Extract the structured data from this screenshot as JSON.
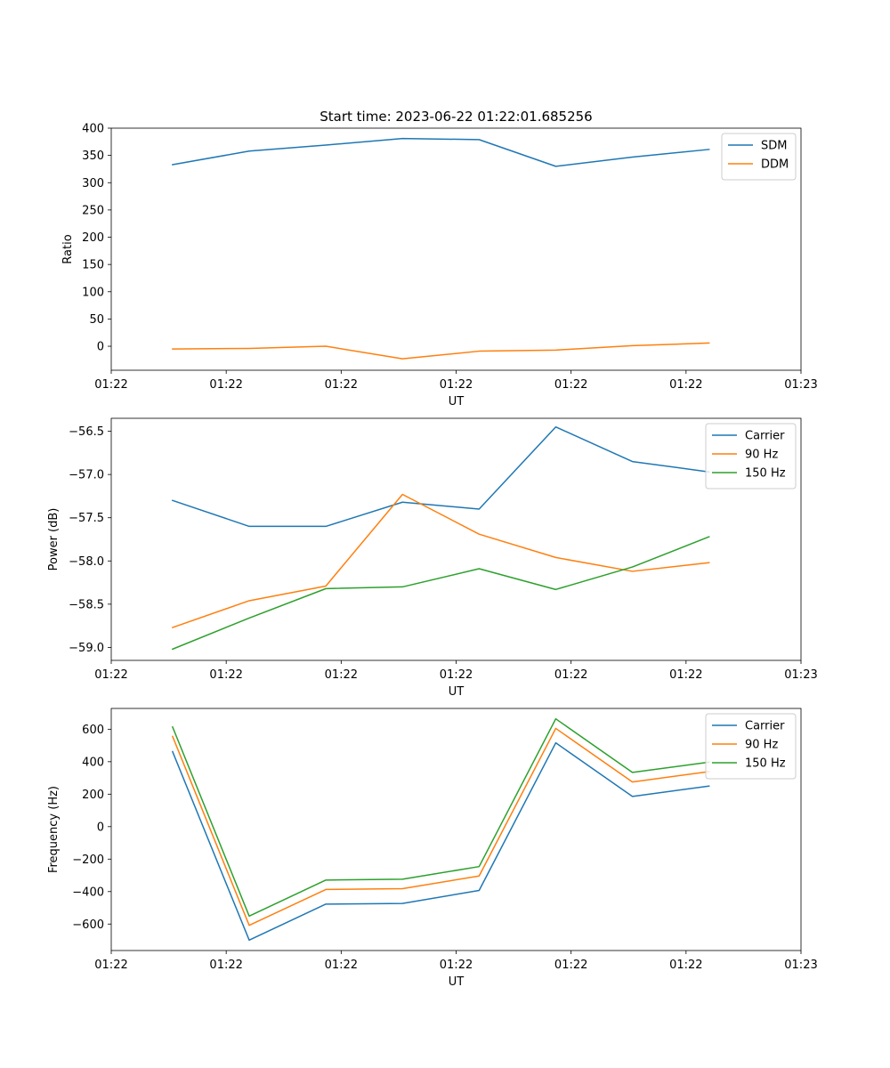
{
  "figure": {
    "title": "Start time: 2023-06-22 01:22:01.685256"
  },
  "colors": {
    "blue": "#1f77b4",
    "orange": "#ff7f0e",
    "green": "#2ca02c"
  },
  "chart_data": [
    {
      "type": "line",
      "title": "Start time: 2023-06-22 01:22:01.685256",
      "xlabel": "UT",
      "ylabel": "Ratio",
      "x": [
        1,
        2,
        3,
        4,
        5,
        6,
        7,
        8
      ],
      "xlim": [
        0.2,
        9.2
      ],
      "xticks": [
        0.2,
        1.7,
        3.2,
        4.7,
        6.2,
        7.7,
        9.2
      ],
      "xticklabels": [
        "01:22",
        "01:22",
        "01:22",
        "01:22",
        "01:22",
        "01:22",
        "01:23"
      ],
      "ylim": [
        -44,
        400
      ],
      "yticks": [
        0,
        50,
        100,
        150,
        200,
        250,
        300,
        350,
        400
      ],
      "yticklabels": [
        "0",
        "50",
        "100",
        "150",
        "200",
        "250",
        "300",
        "350",
        "400"
      ],
      "legend_position": "top-right",
      "series": [
        {
          "name": "SDM",
          "color": "#1f77b4",
          "values": [
            333,
            358,
            369,
            381,
            379,
            330,
            347,
            361
          ]
        },
        {
          "name": "DDM",
          "color": "#ff7f0e",
          "values": [
            -5,
            -4,
            0,
            -23,
            -9,
            -7,
            1,
            6
          ]
        }
      ]
    },
    {
      "type": "line",
      "title": "",
      "xlabel": "UT",
      "ylabel": "Power (dB)",
      "x": [
        1,
        2,
        3,
        4,
        5,
        6,
        7,
        8
      ],
      "xlim": [
        0.2,
        9.2
      ],
      "xticks": [
        0.2,
        1.7,
        3.2,
        4.7,
        6.2,
        7.7,
        9.2
      ],
      "xticklabels": [
        "01:22",
        "01:22",
        "01:22",
        "01:22",
        "01:22",
        "01:22",
        "01:23"
      ],
      "ylim": [
        -59.15,
        -56.35
      ],
      "yticks": [
        -59.0,
        -58.5,
        -58.0,
        -57.5,
        -57.0,
        -56.5
      ],
      "yticklabels": [
        "−59.0",
        "−58.5",
        "−58.0",
        "−57.5",
        "−57.0",
        "−56.5"
      ],
      "legend_position": "top-right",
      "series": [
        {
          "name": "Carrier",
          "color": "#1f77b4",
          "values": [
            -57.3,
            -57.6,
            -57.6,
            -57.32,
            -57.4,
            -56.45,
            -56.85,
            -56.97
          ]
        },
        {
          "name": "90 Hz",
          "color": "#ff7f0e",
          "values": [
            -58.77,
            -58.46,
            -58.29,
            -57.23,
            -57.69,
            -57.96,
            -58.12,
            -58.02
          ]
        },
        {
          "name": "150 Hz",
          "color": "#2ca02c",
          "values": [
            -59.02,
            -58.66,
            -58.32,
            -58.3,
            -58.09,
            -58.33,
            -58.07,
            -57.72
          ]
        }
      ]
    },
    {
      "type": "line",
      "title": "",
      "xlabel": "UT",
      "ylabel": "Frequency (Hz)",
      "x": [
        1,
        2,
        3,
        4,
        5,
        6,
        7,
        8
      ],
      "xlim": [
        0.2,
        9.2
      ],
      "xticks": [
        0.2,
        1.7,
        3.2,
        4.7,
        6.2,
        7.7,
        9.2
      ],
      "xticklabels": [
        "01:22",
        "01:22",
        "01:22",
        "01:22",
        "01:22",
        "01:22",
        "01:23"
      ],
      "ylim": [
        -763,
        728
      ],
      "yticks": [
        -600,
        -400,
        -200,
        0,
        200,
        400,
        600
      ],
      "yticklabels": [
        "−600",
        "−400",
        "−200",
        "0",
        "200",
        "400",
        "600"
      ],
      "legend_position": "top-right",
      "series": [
        {
          "name": "Carrier",
          "color": "#1f77b4",
          "values": [
            462,
            -699,
            -477,
            -473,
            -393,
            516,
            186,
            250
          ]
        },
        {
          "name": "90 Hz",
          "color": "#ff7f0e",
          "values": [
            556,
            -608,
            -387,
            -382,
            -304,
            605,
            275,
            339
          ]
        },
        {
          "name": "150 Hz",
          "color": "#2ca02c",
          "values": [
            614,
            -551,
            -329,
            -324,
            -246,
            664,
            334,
            397
          ]
        }
      ]
    }
  ]
}
